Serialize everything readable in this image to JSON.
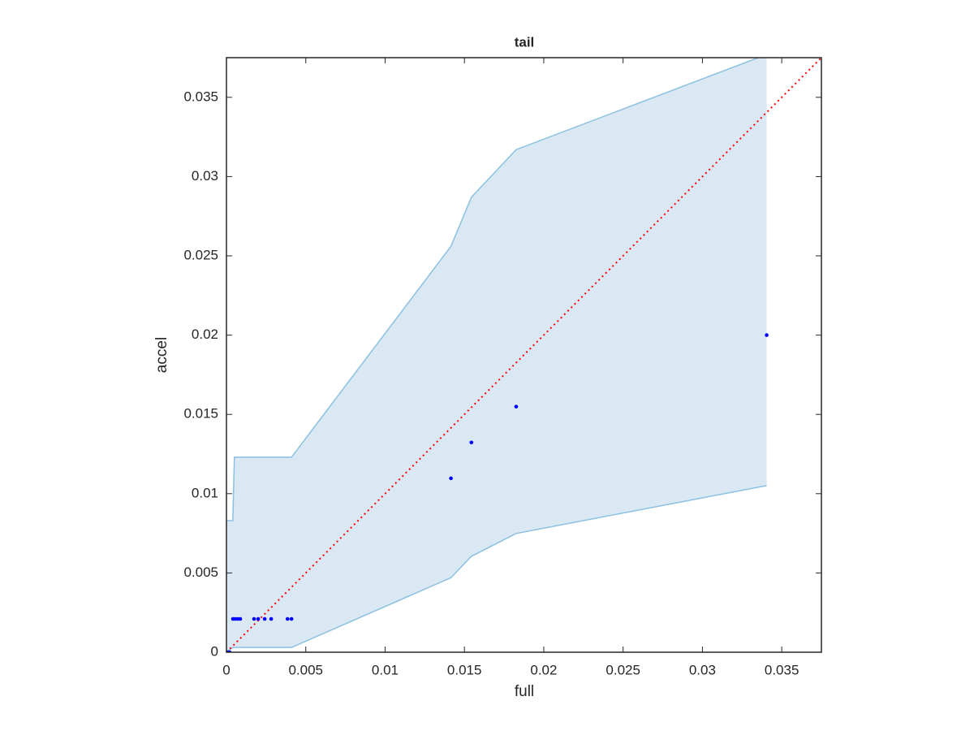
{
  "chart_data": {
    "type": "scatter",
    "title": "tail",
    "x_label": "full",
    "y_label": "accel",
    "xlim": [
      0,
      0.0375
    ],
    "ylim": [
      0,
      0.0375
    ],
    "xticks": [
      0,
      0.005,
      0.01,
      0.015,
      0.02,
      0.025,
      0.03,
      0.035
    ],
    "yticks": [
      0,
      0.005,
      0.01,
      0.015,
      0.02,
      0.025,
      0.03,
      0.035
    ],
    "reference_line": true,
    "reference_color": "#ff0000",
    "band": {
      "color": "#dae8f4",
      "edge_color": "#8cc0e0",
      "x": [
        0,
        0.0004,
        0.0005,
        0.0041,
        0.01415,
        0.01544,
        0.01826,
        0.03405
      ],
      "upper": [
        0.0083,
        0.0083,
        0.0123,
        0.0123,
        0.0256,
        0.0287,
        0.0317,
        0.0377
      ],
      "lower": [
        0,
        0.0003,
        0.0003,
        0.0003,
        0.0047,
        0.00605,
        0.00749,
        0.01051
      ]
    },
    "series": [
      {
        "color": "#0000ff",
        "x": [
          0,
          0.0001,
          0.0002,
          0.00041,
          0.00056,
          0.00072,
          0.00087,
          0.00174,
          0.002,
          0.00241,
          0.00282,
          0.00385,
          0.0041,
          0.01415,
          0.01544,
          0.01826,
          0.03405
        ],
        "values": [
          0,
          0,
          0,
          0.0021,
          0.0021,
          0.0021,
          0.0021,
          0.0021,
          0.0021,
          0.0021,
          0.0021,
          0.0021,
          0.0021,
          0.01097,
          0.01323,
          0.01549,
          0.02
        ]
      }
    ]
  }
}
